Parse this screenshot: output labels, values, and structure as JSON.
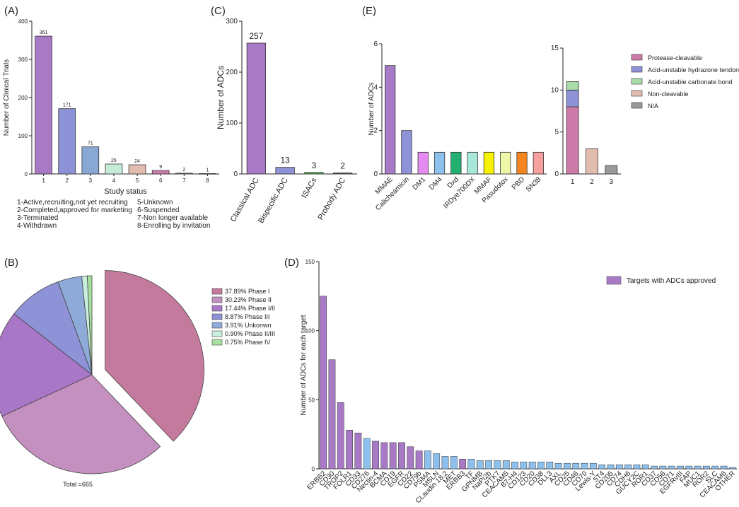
{
  "colors": {
    "purple": "#a87ac6",
    "blue": "#8e92d6",
    "steelblue": "#88a8d4",
    "mint": "#c4ecd6",
    "peach": "#e3bcb0",
    "rose": "#cc7aa8",
    "gray": "#9a9a9a",
    "lightblue": "#8ec0ee"
  },
  "chart_data": [
    {
      "panel": "(A)",
      "type": "bar",
      "categories": [
        "1",
        "2",
        "3",
        "4",
        "5",
        "6",
        "7",
        "8"
      ],
      "values": [
        361,
        171,
        71,
        26,
        24,
        9,
        2,
        1
      ],
      "value_labels": [
        "361",
        "171",
        "71",
        "26",
        "24",
        "9",
        "2",
        "1"
      ],
      "bar_colors": [
        "#a87ac6",
        "#8e92d6",
        "#88a8d4",
        "#c4ecd6",
        "#e3bcb0",
        "#cc7aa8",
        "#9a9a9a",
        "#bbbbbb"
      ],
      "ylim": [
        0,
        400
      ],
      "yticks": [
        0,
        100,
        200,
        300,
        400
      ],
      "xlabel": "Study status",
      "ylabel": "Number of Clinical Trials",
      "legend_left": [
        "1-Active,recruiting,not yet recruiting",
        "2-Completed,approved for marketing",
        "3-Terminated",
        "4-Withdrawn"
      ],
      "legend_right": [
        "5-Unknown",
        "6-Suspended",
        "7-Non longer available",
        "8-Enrolling by invitation"
      ]
    },
    {
      "panel": "(C)",
      "type": "bar",
      "categories": [
        "Classical ADC",
        "Bispecific ADC",
        "ISACs",
        "Probody ADC"
      ],
      "values": [
        257,
        13,
        3,
        2
      ],
      "value_labels": [
        "257",
        "13",
        "3",
        "2"
      ],
      "bar_colors": [
        "#a87ac6",
        "#8e92d6",
        "#4caf50",
        "#555555"
      ],
      "ylim": [
        0,
        300
      ],
      "yticks": [
        0,
        100,
        200,
        300
      ],
      "xlabel": "",
      "ylabel": "Number  of  ADCs"
    },
    {
      "panel": "(E)",
      "type": "bar",
      "categories": [
        "MMAE",
        "Calicheamicin",
        "DM1",
        "DM4",
        "Dxd",
        "IRDye700DX",
        "MMAF",
        "Pasudotox",
        "PBD",
        "SN38"
      ],
      "values": [
        5,
        2,
        1,
        1,
        1,
        1,
        1,
        1,
        1,
        1
      ],
      "bar_colors": [
        "#a87ac6",
        "#8e92d6",
        "#e58af0",
        "#8ec0ee",
        "#22b070",
        "#a8e8d8",
        "#f6f200",
        "#eef6a8",
        "#f5851f",
        "#f7a0a0"
      ],
      "ylim": [
        0,
        6
      ],
      "yticks": [
        0,
        2,
        4,
        6
      ],
      "xlabel": "",
      "ylabel": "Number  of  ADCs"
    },
    {
      "panel": "(E)-stacked",
      "type": "bar",
      "categories": [
        "1",
        "2",
        "3"
      ],
      "series": [
        {
          "name": "Protease-cleavable",
          "color": "#cc7aa8",
          "values": [
            8,
            0,
            0
          ]
        },
        {
          "name": "Acid-unstable hydrazone tendon",
          "color": "#8e92d6",
          "values": [
            2,
            0,
            0
          ]
        },
        {
          "name": "Acid-unstable carbonate bond",
          "color": "#a8dca8",
          "values": [
            1,
            0,
            0
          ]
        },
        {
          "name": "Non-cleavable",
          "color": "#e3bcb0",
          "values": [
            0,
            3,
            0
          ]
        },
        {
          "name": "N/A",
          "color": "#9a9a9a",
          "values": [
            0,
            0,
            1
          ]
        }
      ],
      "ylim": [
        0,
        15
      ],
      "yticks": [
        0,
        5,
        10,
        15
      ]
    },
    {
      "panel": "(B)",
      "type": "pie",
      "slices": [
        {
          "label": "37.89%  Phase I",
          "value": 37.89,
          "color": "#c47a9c"
        },
        {
          "label": "30.23%  Phase II",
          "value": 30.23,
          "color": "#c490c0"
        },
        {
          "label": "17.44%  Phase I/II",
          "value": 17.44,
          "color": "#a877c8"
        },
        {
          "label": "8.87%  Phase III",
          "value": 8.87,
          "color": "#8e92d6"
        },
        {
          "label": "3.91%  Unkonwn",
          "value": 3.91,
          "color": "#8eaad8"
        },
        {
          "label": "0.90%  Phase II/III",
          "value": 0.9,
          "color": "#c8eedc"
        },
        {
          "label": "0.75%  Phase IV",
          "value": 0.75,
          "color": "#a8e0a0"
        }
      ],
      "total_label": "Total =665"
    },
    {
      "panel": "(D)",
      "type": "bar",
      "categories": [
        "ERBB2",
        "CD30",
        "TROP2",
        "FOLR1",
        "CD33",
        "CD276",
        "Nectin-4",
        "BCMA",
        "CD19",
        "EGFR",
        "CD22",
        "CD79b",
        "PSMA",
        "MSLN",
        "CLaudin 18.2",
        "MET",
        "ERBB3",
        "TF",
        "GPNMB",
        "NaPi2b",
        "PTK7",
        "CEACAM5",
        "B7-H4",
        "CD123",
        "CD20",
        "CD38",
        "DLL3",
        "AXL",
        "CD25",
        "CD46",
        "CD70",
        "Lewis-Y",
        "5T4",
        "CD205",
        "CD74",
        "CDH6",
        "GUCY2C",
        "ROR1",
        "CD37",
        "CD56",
        "CD71",
        "EGFRvIII",
        "FAP",
        "MUC1",
        "ROR2",
        "SLC",
        "CEACAM6",
        "OTHER"
      ],
      "values": [
        125,
        79,
        48,
        28,
        26,
        22,
        20,
        19,
        19,
        19,
        16,
        13,
        13,
        11,
        9,
        9,
        7,
        7,
        6,
        6,
        6,
        6,
        5,
        5,
        5,
        5,
        5,
        4,
        4,
        4,
        4,
        4,
        3,
        3,
        3,
        3,
        3,
        3,
        2,
        2,
        2,
        2,
        2,
        2,
        2,
        2,
        2,
        1
      ],
      "highlight": [
        true,
        true,
        true,
        true,
        true,
        false,
        true,
        true,
        true,
        true,
        true,
        true,
        false,
        false,
        false,
        false,
        true,
        false,
        false,
        false,
        false,
        false,
        false,
        false,
        false,
        false,
        false,
        false,
        false,
        false,
        false,
        false,
        false,
        false,
        false,
        false,
        false,
        false,
        false,
        false,
        false,
        false,
        false,
        false,
        false,
        false,
        false,
        false
      ],
      "ylim": [
        0,
        150
      ],
      "yticks": [
        0,
        50,
        100,
        150
      ],
      "xlabel": "",
      "ylabel": "Number of ADCs for each target",
      "legend": "Targets with ADCs approved"
    }
  ],
  "panel_labels": {
    "a": "(A)",
    "b": "(B)",
    "c": "(C)",
    "d": "(D)",
    "e": "(E)"
  }
}
